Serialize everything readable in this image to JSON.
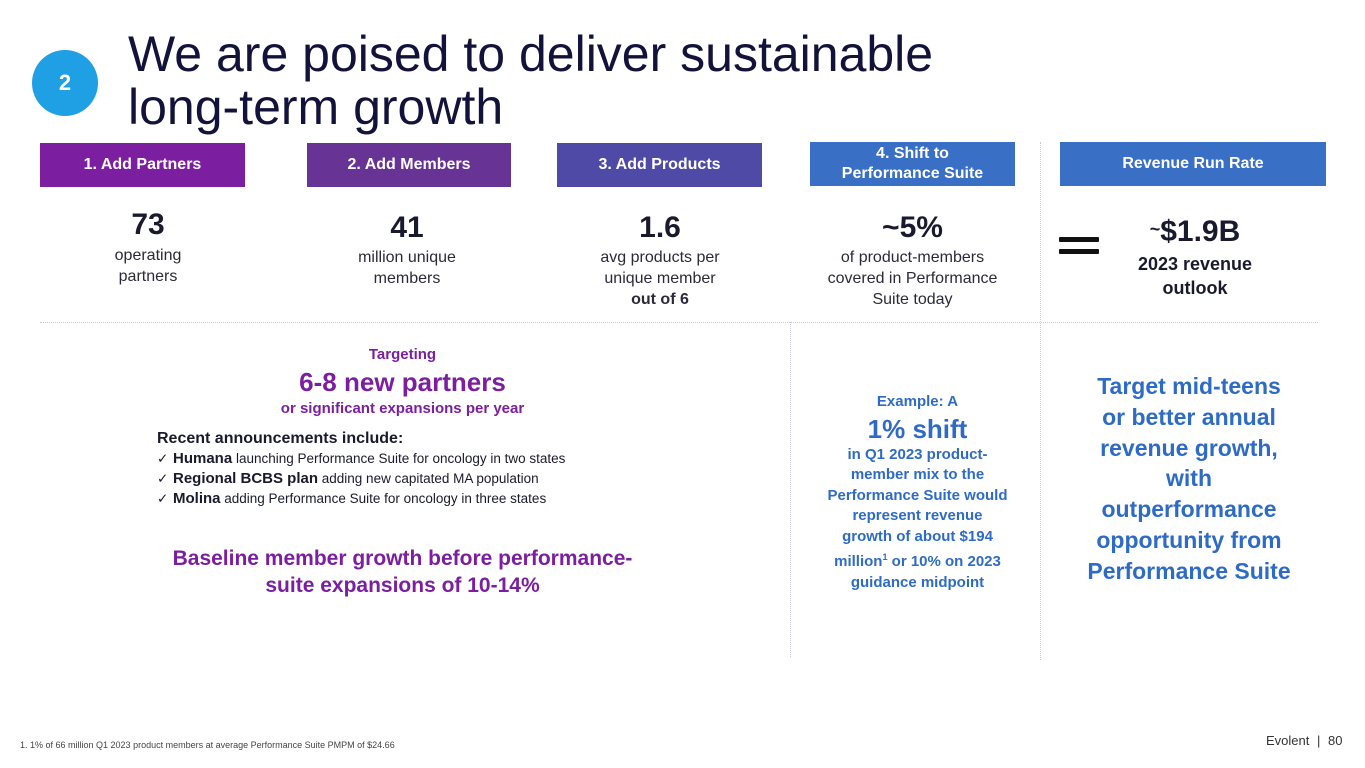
{
  "badge": "2",
  "title_line1": "We are poised to deliver sustainable",
  "title_line2": "long-term growth",
  "columns": [
    {
      "header": "1.  Add Partners",
      "value": "73",
      "desc1": "operating",
      "desc2": "partners",
      "color": "#7b1fa0"
    },
    {
      "header": "2.  Add Members",
      "value": "41",
      "desc1": "million unique",
      "desc2": "members",
      "color": "#673395"
    },
    {
      "header": "3.  Add Products",
      "value": "1.6",
      "desc1": "avg products per",
      "desc2": "unique member",
      "desc3": "out of 6",
      "color": "#4f4aa6"
    },
    {
      "header_line1": "4.  Shift to",
      "header_line2": "Performance Suite",
      "value": "~5%",
      "desc1": "of product-members",
      "desc2": "covered in Performance",
      "desc3": "Suite today",
      "color": "#3a6fc6"
    },
    {
      "header": "Revenue Run Rate",
      "value_prefix": "~",
      "value": "$1.9B",
      "desc1": "2023 revenue",
      "desc2": "outlook",
      "color": "#3a6fc6"
    }
  ],
  "targeting": {
    "label": "Targeting",
    "headline": "6-8 new partners",
    "sub": "or significant expansions per year"
  },
  "announcements": {
    "title": "Recent announcements include:",
    "items": [
      {
        "bold": "Humana",
        "text": " launching Performance Suite for oncology in two states"
      },
      {
        "bold": "Regional BCBS plan",
        "text": " adding new capitated MA population"
      },
      {
        "bold": "Molina",
        "text": " adding Performance Suite for oncology in three states"
      }
    ]
  },
  "baseline_line1": "Baseline member growth before performance-",
  "baseline_line2": "suite expansions of 10-14%",
  "example": {
    "label": "Example: A",
    "headline": "1% shift",
    "l1": "in Q1 2023 product-",
    "l2": "member mix to the",
    "l3": "Performance Suite would",
    "l4": "represent revenue",
    "l5": "growth of about $194",
    "l6a": "million",
    "l6sup": "1",
    "l6b": " or 10% on 2023",
    "l7": "guidance midpoint"
  },
  "target": {
    "l1": "Target mid-teens",
    "l2": "or better annual",
    "l3": "revenue growth,",
    "l4": "with",
    "l5": "outperformance",
    "l6": "opportunity from",
    "l7": "Performance Suite"
  },
  "footnote": "1.    1% of 66 million Q1 2023 product members at average Performance Suite PMPM of $24.66",
  "brand": "Evolent",
  "separator": "|",
  "page_number": "80"
}
